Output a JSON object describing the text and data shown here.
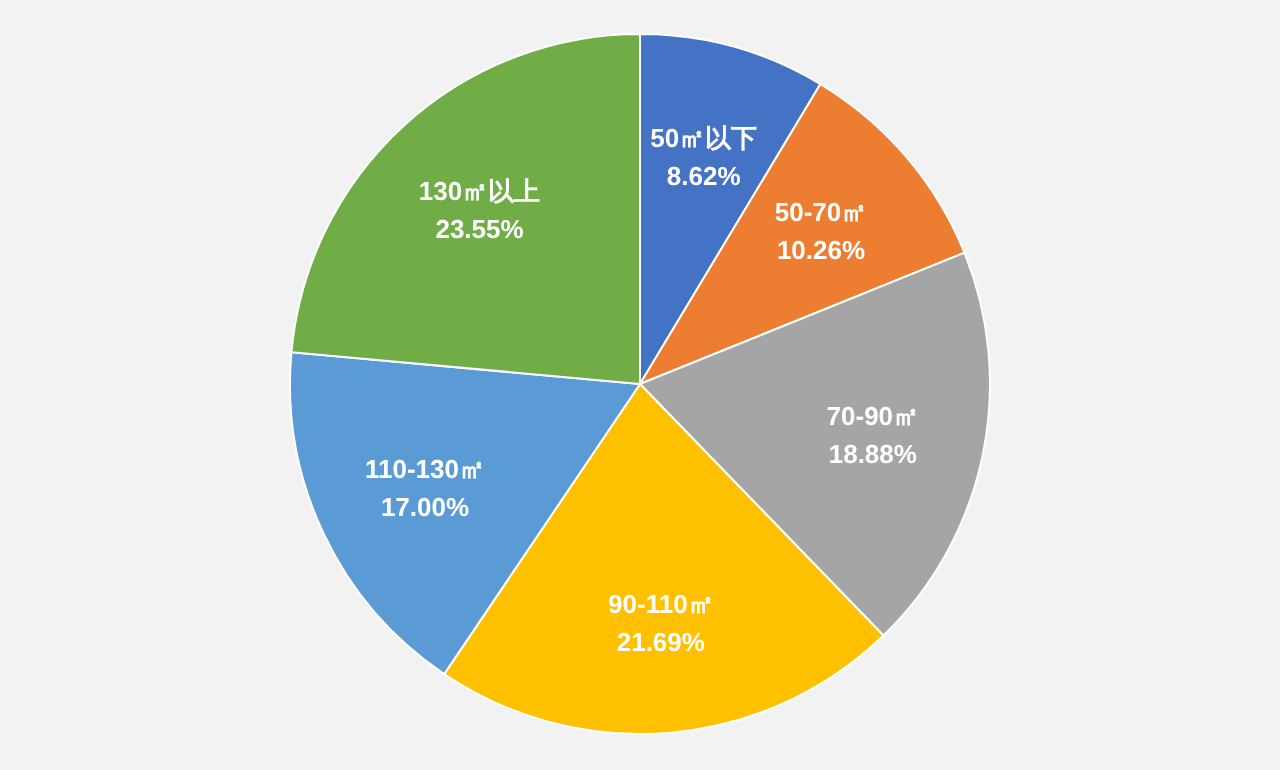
{
  "chart_data": {
    "type": "pie",
    "categories": [
      "50㎡以下",
      "50-70㎡",
      "70-90㎡",
      "90-110㎡",
      "110-130㎡",
      "130㎡以上"
    ],
    "values": [
      8.62,
      10.26,
      18.88,
      21.69,
      17.0,
      23.55
    ],
    "value_labels": [
      "8.62%",
      "10.26%",
      "18.88%",
      "21.69%",
      "17.00%",
      "23.55%"
    ],
    "colors": [
      "#4472c4",
      "#ed7d31",
      "#a5a5a5",
      "#ffc000",
      "#5b9bd5",
      "#70ad47"
    ],
    "legend": false
  }
}
